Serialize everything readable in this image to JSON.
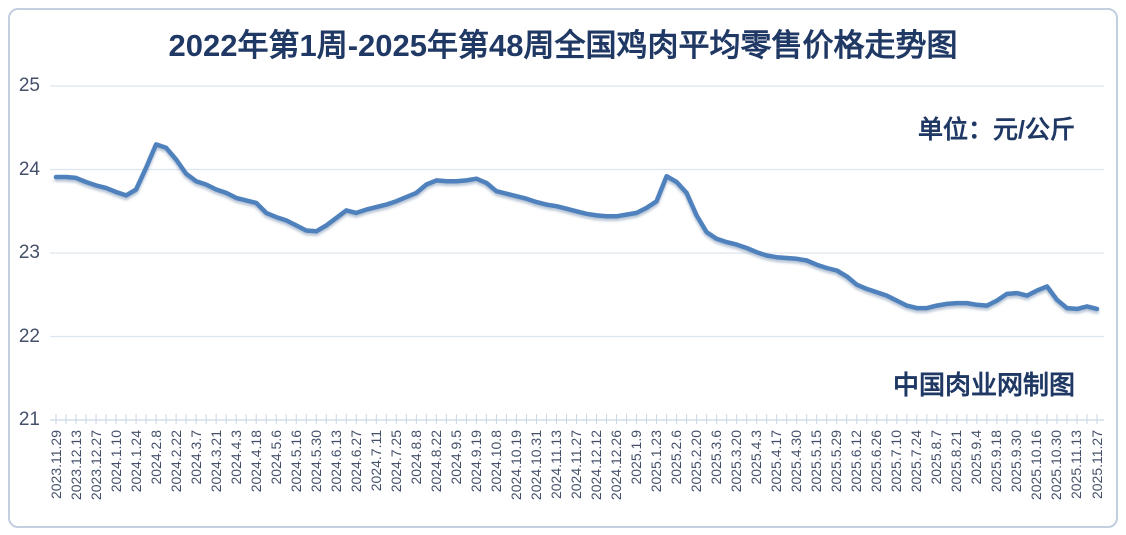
{
  "page": {
    "title": "2022年第1周-2025年第48周全国鸡肉平均零售价格走势图",
    "unit_label": "单位：元/公斤",
    "credit": "中国肉业网制图"
  },
  "colors": {
    "title_text": "#1f3864",
    "axis_text": "#44506a",
    "line": "#4f81bd",
    "line_shadow": "#6d89ab",
    "gridline": "#dde5ee",
    "tick": "#cbd6e3",
    "frame_border": "#c3cfdf",
    "background": "#ffffff"
  },
  "chart_data": {
    "type": "line",
    "title": "2022年第1周-2025年第48周全国鸡肉平均零售价格走势图",
    "y_unit": "元/公斤",
    "ylim": [
      21,
      25
    ],
    "yticks": [
      25,
      24,
      23,
      22,
      21
    ],
    "grid": true,
    "legend": "none",
    "line_color": "#4f81bd",
    "points_per_label_interval": 2,
    "categories": [
      "2023.11.29",
      "2023.12.13",
      "2023.12.27",
      "2024.1.10",
      "2024.1.24",
      "2024.2.8",
      "2024.2.22",
      "2024.3.7",
      "2024.3.21",
      "2024.4.3",
      "2024.4.18",
      "2024.5.6",
      "2024.5.16",
      "2024.5.30",
      "2024.6.13",
      "2024.6.27",
      "2024.7.11",
      "2024.7.25",
      "2024.8.8",
      "2024.8.22",
      "2024.9.5",
      "2024.9.19",
      "2024.10.8",
      "2024.10.19",
      "2024.10.31",
      "2024.11.13",
      "2024.11.27",
      "2024.12.12",
      "2024.12.26",
      "2025.1.9",
      "2025.1.23",
      "2025.2.6",
      "2025.2.20",
      "2025.3.6",
      "2025.3.20",
      "2025.4.3",
      "2025.4.17",
      "2025.4.30",
      "2025.5.15",
      "2025.5.29",
      "2025.6.12",
      "2025.6.26",
      "2025.7.10",
      "2025.7.24",
      "2025.8.7",
      "2025.8.21",
      "2025.9.4",
      "2025.9.18",
      "2025.9.30",
      "2025.10.16",
      "2025.10.30",
      "2025.11.13",
      "2025.11.27"
    ],
    "values": [
      23.91,
      23.91,
      23.9,
      23.85,
      23.81,
      23.78,
      23.73,
      23.69,
      23.76,
      24.02,
      24.3,
      24.26,
      24.12,
      23.95,
      23.86,
      23.82,
      23.76,
      23.72,
      23.66,
      23.63,
      23.6,
      23.48,
      23.43,
      23.39,
      23.33,
      23.27,
      23.26,
      23.33,
      23.42,
      23.51,
      23.48,
      23.52,
      23.55,
      23.58,
      23.62,
      23.67,
      23.72,
      23.82,
      23.87,
      23.86,
      23.86,
      23.87,
      23.89,
      23.84,
      23.74,
      23.71,
      23.68,
      23.65,
      23.61,
      23.58,
      23.56,
      23.53,
      23.5,
      23.47,
      23.45,
      23.44,
      23.44,
      23.46,
      23.48,
      23.54,
      23.62,
      23.92,
      23.85,
      23.72,
      23.45,
      23.25,
      23.17,
      23.13,
      23.1,
      23.06,
      23.01,
      22.97,
      22.95,
      22.94,
      22.93,
      22.91,
      22.86,
      22.82,
      22.79,
      22.72,
      22.62,
      22.57,
      22.53,
      22.49,
      22.43,
      22.37,
      22.34,
      22.34,
      22.37,
      22.39,
      22.4,
      22.4,
      22.38,
      22.37,
      22.43,
      22.51,
      22.52,
      22.49,
      22.55,
      22.6,
      22.44,
      22.34,
      22.33,
      22.36,
      22.33
    ]
  }
}
